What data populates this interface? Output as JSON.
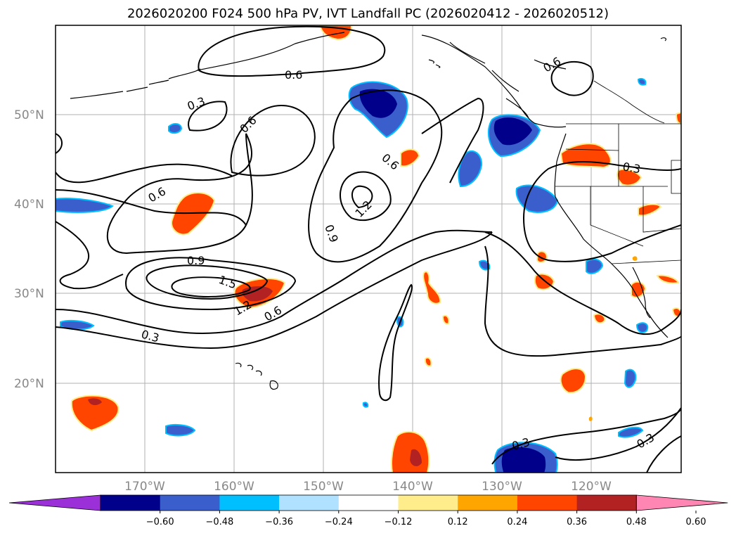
{
  "title": "2026020200 F024 500 hPa PV, IVT Landfall PC (2026020412 - 2026020512)",
  "map": {
    "projection": "PlateCarree",
    "lon_range": [
      -180,
      -110
    ],
    "lat_range": [
      10,
      60
    ],
    "grid": true,
    "lat_ticks": [
      "50°N",
      "40°N",
      "30°N",
      "20°N"
    ],
    "lon_ticks": [
      "170°W",
      "160°W",
      "150°W",
      "140°W",
      "130°W",
      "120°W"
    ],
    "contour_color": "#000000",
    "contour_labels": [
      "0.6",
      "0.6",
      "0.3",
      "0.6",
      "0.6",
      "0.6",
      "1.2",
      "0.9",
      "0.9",
      "1.5",
      "1.2",
      "0.6",
      "0.3",
      "0.3",
      "0.3",
      "0.3"
    ]
  },
  "colorbar": {
    "ticks": [
      "−0.60",
      "−0.48",
      "−0.36",
      "−0.24",
      "−0.12",
      "0.12",
      "0.24",
      "0.36",
      "0.48",
      "0.60"
    ],
    "colors": [
      "#9b30d9",
      "#00008b",
      "#3a5fcd",
      "#00bfff",
      "#b0e2ff",
      "#ffffff",
      "#ffec8b",
      "#ffa500",
      "#ff4500",
      "#b22222",
      "#ff86b3"
    ]
  }
}
